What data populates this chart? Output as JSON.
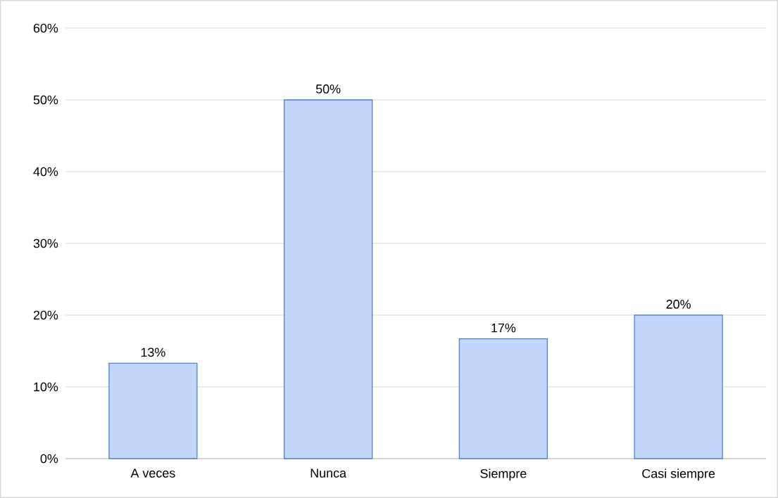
{
  "chart_data": {
    "type": "bar",
    "categories": [
      "A veces",
      "Nunca",
      "Siempre",
      "Casi siempre"
    ],
    "values": [
      13.3,
      50,
      16.7,
      20
    ],
    "value_labels": [
      "13%",
      "50%",
      "17%",
      "20%"
    ],
    "color": "#c2d6fb",
    "ylim": [
      0,
      60
    ],
    "yticks": [
      {
        "value": 0,
        "label": "0%"
      },
      {
        "value": 10,
        "label": "10%"
      },
      {
        "value": 20,
        "label": "20%"
      },
      {
        "value": 30,
        "label": "30%"
      },
      {
        "value": 40,
        "label": "40%"
      },
      {
        "value": 50,
        "label": "50%"
      },
      {
        "value": 60,
        "label": "60%"
      }
    ],
    "grid": "y"
  }
}
